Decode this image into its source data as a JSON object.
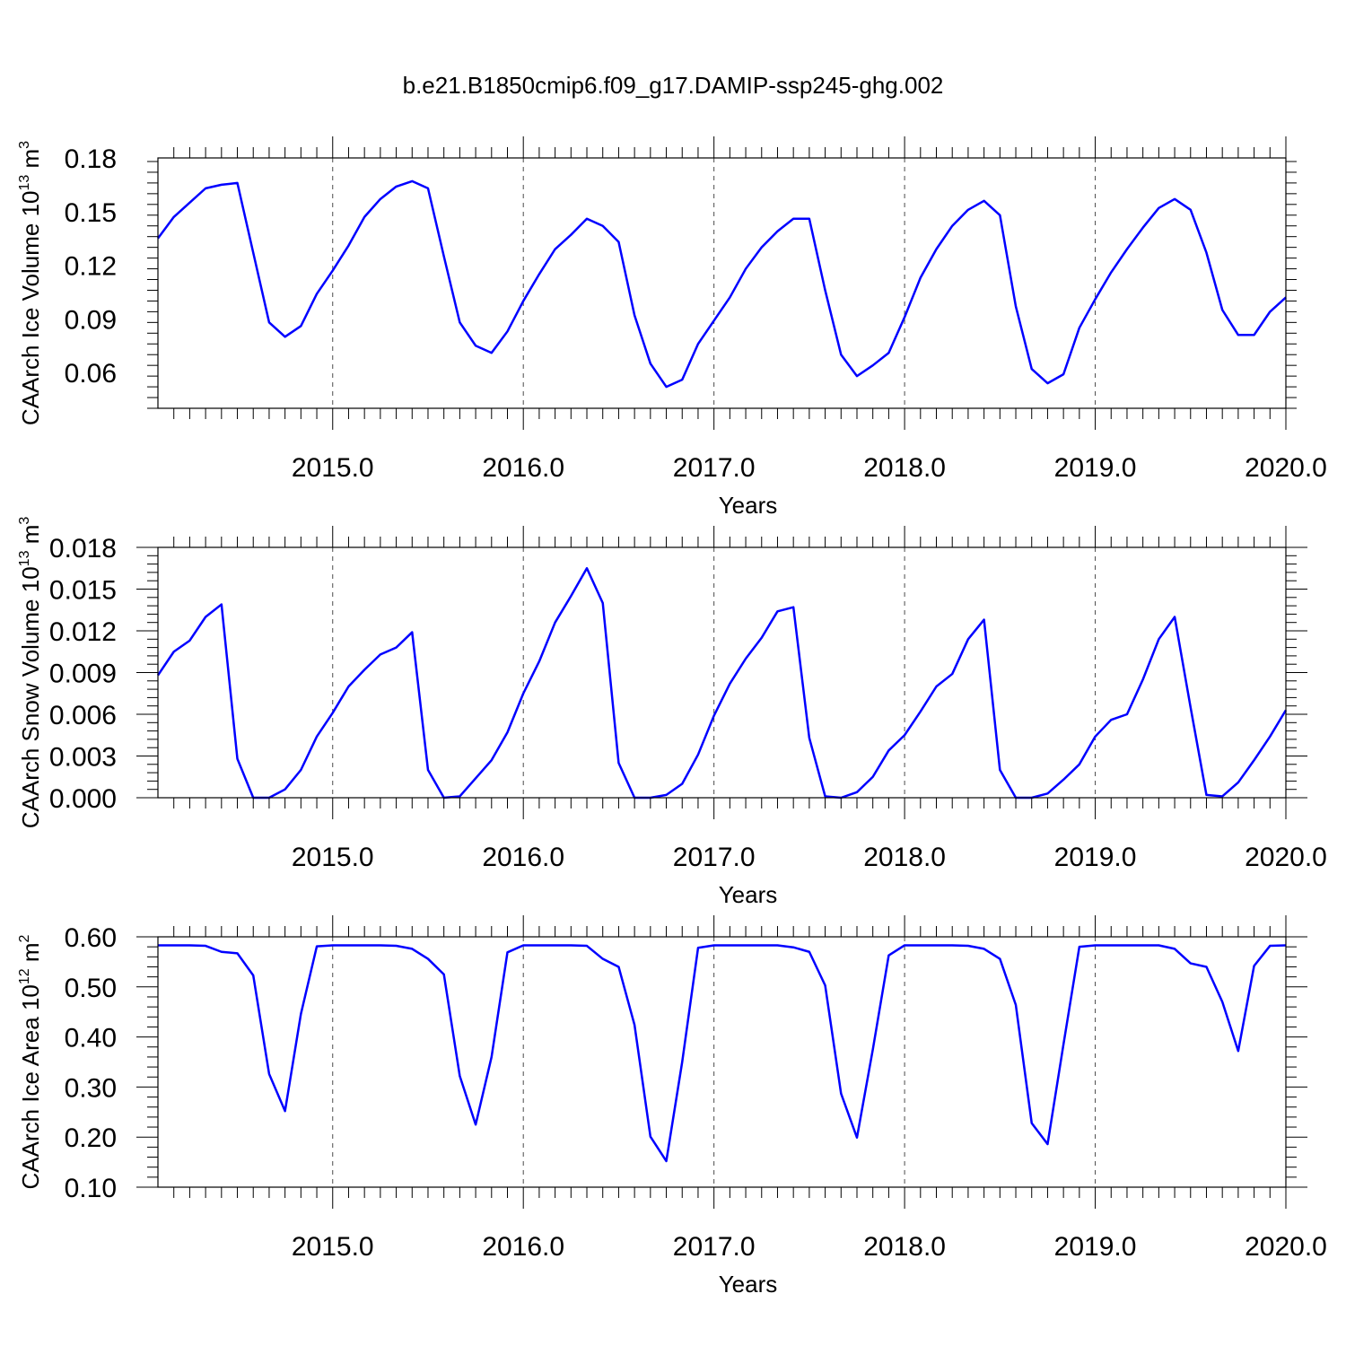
{
  "title": "b.e21.B1850cmip6.f09_g17.DAMIP-ssp245-ghg.002",
  "chart_data": [
    {
      "type": "line",
      "name": "ice-volume",
      "title": "",
      "ylabel_main": "CAArch Ice Volume 10",
      "ylabel_exp": "13",
      "ylabel_unit": "m",
      "ylabel_unit_exp": "3",
      "xlabel": "Years",
      "xlim": [
        2014.0833,
        2020.0
      ],
      "ylim": [
        0.04,
        0.18
      ],
      "yticks": [
        0.06,
        0.09,
        0.12,
        0.15,
        0.18
      ],
      "ytick_labels": [
        "0.06",
        "0.09",
        "0.12",
        "0.15",
        "0.18"
      ],
      "xticks": [
        2015,
        2016,
        2017,
        2018,
        2019,
        2020
      ],
      "xtick_labels": [
        "2015.0",
        "2016.0",
        "2017.0",
        "2018.0",
        "2019.0",
        "2020.0"
      ],
      "grid": "vertical dashed at major x ticks",
      "color": "#0000ff",
      "x": [
        2014.0833,
        2014.1667,
        2014.25,
        2014.3333,
        2014.4167,
        2014.5,
        2014.5833,
        2014.6667,
        2014.75,
        2014.8333,
        2014.9167,
        2015.0,
        2015.0833,
        2015.1667,
        2015.25,
        2015.3333,
        2015.4167,
        2015.5,
        2015.5833,
        2015.6667,
        2015.75,
        2015.8333,
        2015.9167,
        2016.0,
        2016.0833,
        2016.1667,
        2016.25,
        2016.3333,
        2016.4167,
        2016.5,
        2016.5833,
        2016.6667,
        2016.75,
        2016.8333,
        2016.9167,
        2017.0,
        2017.0833,
        2017.1667,
        2017.25,
        2017.3333,
        2017.4167,
        2017.5,
        2017.5833,
        2017.6667,
        2017.75,
        2017.8333,
        2017.9167,
        2018.0,
        2018.0833,
        2018.1667,
        2018.25,
        2018.3333,
        2018.4167,
        2018.5,
        2018.5833,
        2018.6667,
        2018.75,
        2018.8333,
        2018.9167,
        2019.0,
        2019.0833,
        2019.1667,
        2019.25,
        2019.3333,
        2019.4167,
        2019.5,
        2019.5833,
        2019.6667,
        2019.75,
        2019.8333,
        2019.9167,
        2020.0
      ],
      "values": [
        0.135,
        0.147,
        0.155,
        0.163,
        0.165,
        0.166,
        0.127,
        0.088,
        0.08,
        0.086,
        0.104,
        0.117,
        0.131,
        0.147,
        0.157,
        0.164,
        0.167,
        0.163,
        0.125,
        0.088,
        0.075,
        0.071,
        0.083,
        0.1,
        0.115,
        0.129,
        0.137,
        0.146,
        0.142,
        0.133,
        0.092,
        0.065,
        0.052,
        0.056,
        0.076,
        0.089,
        0.102,
        0.118,
        0.13,
        0.139,
        0.146,
        0.146,
        0.106,
        0.07,
        0.058,
        0.064,
        0.071,
        0.091,
        0.113,
        0.129,
        0.142,
        0.151,
        0.156,
        0.148,
        0.097,
        0.062,
        0.054,
        0.059,
        0.085,
        0.101,
        0.116,
        0.129,
        0.141,
        0.152,
        0.157,
        0.151,
        0.127,
        0.095,
        0.081,
        0.081,
        0.094,
        0.102
      ]
    },
    {
      "type": "line",
      "name": "snow-volume",
      "title": "",
      "ylabel_main": "CAArch Snow Volume 10",
      "ylabel_exp": "13",
      "ylabel_unit": "m",
      "ylabel_unit_exp": "3",
      "xlabel": "Years",
      "xlim": [
        2014.0833,
        2020.0
      ],
      "ylim": [
        0.0,
        0.018
      ],
      "yticks": [
        0.0,
        0.003,
        0.006,
        0.009,
        0.012,
        0.015,
        0.018
      ],
      "ytick_labels": [
        "0.000",
        "0.003",
        "0.006",
        "0.009",
        "0.012",
        "0.015",
        "0.018"
      ],
      "xticks": [
        2015,
        2016,
        2017,
        2018,
        2019,
        2020
      ],
      "xtick_labels": [
        "2015.0",
        "2016.0",
        "2017.0",
        "2018.0",
        "2019.0",
        "2020.0"
      ],
      "grid": "vertical dashed at major x ticks",
      "color": "#0000ff",
      "x": [
        2014.0833,
        2014.1667,
        2014.25,
        2014.3333,
        2014.4167,
        2014.5,
        2014.5833,
        2014.6667,
        2014.75,
        2014.8333,
        2014.9167,
        2015.0,
        2015.0833,
        2015.1667,
        2015.25,
        2015.3333,
        2015.4167,
        2015.5,
        2015.5833,
        2015.6667,
        2015.75,
        2015.8333,
        2015.9167,
        2016.0,
        2016.0833,
        2016.1667,
        2016.25,
        2016.3333,
        2016.4167,
        2016.5,
        2016.5833,
        2016.6667,
        2016.75,
        2016.8333,
        2016.9167,
        2017.0,
        2017.0833,
        2017.1667,
        2017.25,
        2017.3333,
        2017.4167,
        2017.5,
        2017.5833,
        2017.6667,
        2017.75,
        2017.8333,
        2017.9167,
        2018.0,
        2018.0833,
        2018.1667,
        2018.25,
        2018.3333,
        2018.4167,
        2018.5,
        2018.5833,
        2018.6667,
        2018.75,
        2018.8333,
        2018.9167,
        2019.0,
        2019.0833,
        2019.1667,
        2019.25,
        2019.3333,
        2019.4167,
        2019.5,
        2019.5833,
        2019.6667,
        2019.75,
        2019.8333,
        2019.9167,
        2020.0
      ],
      "values": [
        0.0088,
        0.0105,
        0.0113,
        0.013,
        0.0139,
        0.0028,
        0.0,
        0.0,
        0.0006,
        0.002,
        0.0044,
        0.0061,
        0.008,
        0.0092,
        0.0103,
        0.0108,
        0.0119,
        0.002,
        0.0,
        0.0001,
        0.0014,
        0.0027,
        0.0047,
        0.0075,
        0.0098,
        0.0126,
        0.0145,
        0.0165,
        0.014,
        0.0025,
        0.0,
        0.0,
        0.0002,
        0.001,
        0.0031,
        0.0059,
        0.0082,
        0.01,
        0.0115,
        0.0134,
        0.0137,
        0.0043,
        0.0001,
        0.0,
        0.0004,
        0.0015,
        0.0034,
        0.0045,
        0.0062,
        0.008,
        0.0089,
        0.0114,
        0.0128,
        0.002,
        0.0,
        0.0,
        0.0003,
        0.0013,
        0.0024,
        0.0044,
        0.0056,
        0.006,
        0.0085,
        0.0114,
        0.013,
        0.0065,
        0.0002,
        0.0001,
        0.0011,
        0.0027,
        0.0044,
        0.0063
      ]
    },
    {
      "type": "line",
      "name": "ice-area",
      "title": "",
      "ylabel_main": "CAArch Ice Area 10",
      "ylabel_exp": "12",
      "ylabel_unit": "m",
      "ylabel_unit_exp": "2",
      "xlabel": "Years",
      "xlim": [
        2014.0833,
        2020.0
      ],
      "ylim": [
        0.1,
        0.6
      ],
      "yticks": [
        0.1,
        0.2,
        0.3,
        0.4,
        0.5,
        0.6
      ],
      "ytick_labels": [
        "0.10",
        "0.20",
        "0.30",
        "0.40",
        "0.50",
        "0.60"
      ],
      "xticks": [
        2015,
        2016,
        2017,
        2018,
        2019,
        2020
      ],
      "xtick_labels": [
        "2015.0",
        "2016.0",
        "2017.0",
        "2018.0",
        "2019.0",
        "2020.0"
      ],
      "grid": "vertical dashed at major x ticks",
      "color": "#0000ff",
      "x": [
        2014.0833,
        2014.1667,
        2014.25,
        2014.3333,
        2014.4167,
        2014.5,
        2014.5833,
        2014.6667,
        2014.75,
        2014.8333,
        2014.9167,
        2015.0,
        2015.0833,
        2015.1667,
        2015.25,
        2015.3333,
        2015.4167,
        2015.5,
        2015.5833,
        2015.6667,
        2015.75,
        2015.8333,
        2015.9167,
        2016.0,
        2016.0833,
        2016.1667,
        2016.25,
        2016.3333,
        2016.4167,
        2016.5,
        2016.5833,
        2016.6667,
        2016.75,
        2016.8333,
        2016.9167,
        2017.0,
        2017.0833,
        2017.1667,
        2017.25,
        2017.3333,
        2017.4167,
        2017.5,
        2017.5833,
        2017.6667,
        2017.75,
        2017.8333,
        2017.9167,
        2018.0,
        2018.0833,
        2018.1667,
        2018.25,
        2018.3333,
        2018.4167,
        2018.5,
        2018.5833,
        2018.6667,
        2018.75,
        2018.8333,
        2018.9167,
        2019.0,
        2019.0833,
        2019.1667,
        2019.25,
        2019.3333,
        2019.4167,
        2019.5,
        2019.5833,
        2019.6667,
        2019.75,
        2019.8333,
        2019.9167,
        2020.0
      ],
      "values": [
        0.583,
        0.583,
        0.583,
        0.582,
        0.57,
        0.567,
        0.523,
        0.326,
        0.252,
        0.446,
        0.581,
        0.583,
        0.583,
        0.583,
        0.583,
        0.582,
        0.576,
        0.556,
        0.525,
        0.322,
        0.225,
        0.36,
        0.569,
        0.583,
        0.583,
        0.583,
        0.583,
        0.582,
        0.556,
        0.54,
        0.424,
        0.201,
        0.152,
        0.35,
        0.578,
        0.583,
        0.583,
        0.583,
        0.583,
        0.583,
        0.579,
        0.57,
        0.503,
        0.287,
        0.199,
        0.375,
        0.563,
        0.583,
        0.583,
        0.583,
        0.583,
        0.582,
        0.576,
        0.556,
        0.464,
        0.228,
        0.186,
        0.385,
        0.58,
        0.583,
        0.583,
        0.583,
        0.583,
        0.583,
        0.576,
        0.547,
        0.54,
        0.47,
        0.372,
        0.542,
        0.582,
        0.583
      ]
    }
  ]
}
